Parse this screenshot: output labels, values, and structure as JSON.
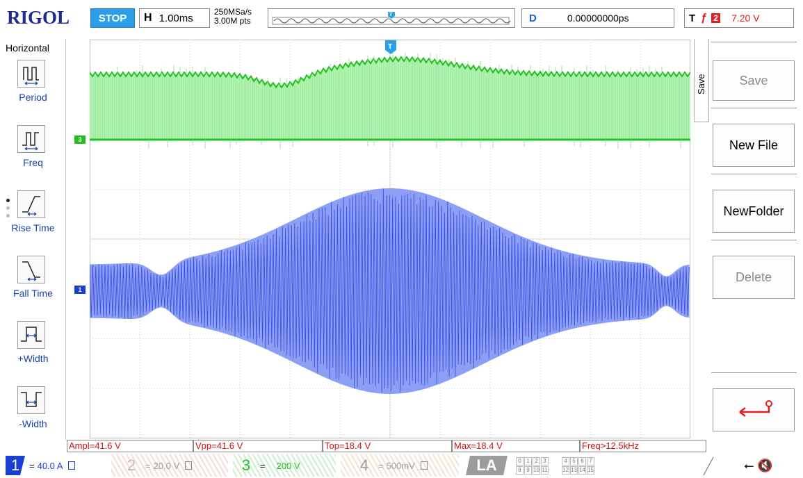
{
  "topbar": {
    "brand": "RIGOL",
    "run_state": "STOP",
    "horizontal_key": "H",
    "timebase": "1.00ms",
    "sample_rate": "250MSa/s",
    "memory_depth": "3.00M pts",
    "delay_key": "D",
    "delay_value": "0.00000000ps",
    "trigger_key": "T",
    "trigger_source": "2",
    "trigger_level": "7.20 V",
    "icons": {
      "memory_trigger": "trigger-position-icon",
      "trigger_edge": "rising-edge-icon"
    }
  },
  "left_menu": {
    "title": "Horizontal",
    "items": [
      {
        "label": "Period",
        "icon": "period-icon"
      },
      {
        "label": "Freq",
        "icon": "frequency-icon"
      },
      {
        "label": "Rise Time",
        "icon": "rise-time-icon"
      },
      {
        "label": "Fall Time",
        "icon": "fall-time-icon"
      },
      {
        "label": "+Width",
        "icon": "positive-width-icon"
      },
      {
        "label": "-Width",
        "icon": "negative-width-icon"
      }
    ]
  },
  "markers": {
    "ch3": "3",
    "ch1": "1",
    "trigger": "T",
    "trigger_time": "T"
  },
  "right_menu": {
    "tab_label": "Save",
    "items": [
      {
        "label": "Save",
        "enabled": false
      },
      {
        "label": "New File",
        "enabled": true
      },
      {
        "label": "NewFolder",
        "enabled": true
      },
      {
        "label": "Delete",
        "enabled": false
      },
      {
        "label": "",
        "icon": "return-arrow-icon",
        "enabled": true
      }
    ]
  },
  "measurements": [
    "Ampl=41.6 V",
    "Vpp=41.6 V",
    "Top=18.4 V",
    "Max=18.4 V",
    "Freq>12.5kHz"
  ],
  "channels": {
    "ch1": {
      "num": "1",
      "coupling": "=",
      "scale": "40.0 A"
    },
    "ch2": {
      "num": "2",
      "coupling": "=",
      "scale": "20.0 V"
    },
    "ch3": {
      "num": "3",
      "coupling": "=",
      "scale": "200 V"
    },
    "ch4": {
      "num": "4",
      "coupling": "=",
      "scale": "500mV"
    },
    "la": {
      "label": "LA",
      "group1": [
        "0",
        "1",
        "2",
        "3",
        "8",
        "9",
        "10",
        "11"
      ],
      "group2": [
        "4",
        "5",
        "6",
        "7",
        "12",
        "13",
        "14",
        "15"
      ]
    }
  },
  "status": {
    "icons": [
      "usb-icon",
      "sound-muted-icon"
    ]
  },
  "colors": {
    "ch1": "#1a3fd0",
    "ch3": "#20c020",
    "trigger": "#e02020",
    "accent": "#2d9fe8",
    "brand": "#1e2a8c"
  }
}
